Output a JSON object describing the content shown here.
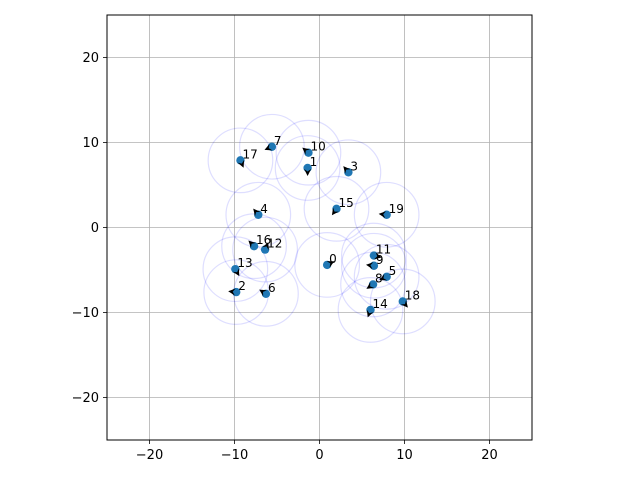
{
  "chart_data": {
    "type": "scatter",
    "title": "",
    "xlabel": "",
    "ylabel": "",
    "xlim": [
      -25,
      25
    ],
    "ylim": [
      -25,
      25
    ],
    "grid": true,
    "legend": "none",
    "xticks": [
      -20,
      -10,
      0,
      10,
      20
    ],
    "yticks": [
      -20,
      -10,
      0,
      10,
      20
    ],
    "xtick_labels": [
      "−20",
      "−10",
      "0",
      "10",
      "20"
    ],
    "ytick_labels": [
      "−20",
      "−10",
      "0",
      "10",
      "20"
    ],
    "circle_radius": 3.8,
    "colors": {
      "point": "#1f77b4",
      "circle": "#0000ff",
      "grid": "#b0b0b0",
      "arrow": "#000000"
    },
    "points": [
      {
        "label": "0",
        "x": 0.9,
        "y": -4.4,
        "dx": 0.6,
        "dy": 0.3
      },
      {
        "label": "1",
        "x": -1.4,
        "y": 7.0,
        "dx": 0.0,
        "dy": -0.9
      },
      {
        "label": "2",
        "x": -9.8,
        "y": -7.6,
        "dx": -0.9,
        "dy": 0.1
      },
      {
        "label": "3",
        "x": 3.4,
        "y": 6.5,
        "dx": -0.5,
        "dy": 0.6
      },
      {
        "label": "4",
        "x": -7.2,
        "y": 1.5,
        "dx": -0.5,
        "dy": 0.6
      },
      {
        "label": "5",
        "x": 7.9,
        "y": -5.8,
        "dx": -0.7,
        "dy": -0.3
      },
      {
        "label": "6",
        "x": -6.3,
        "y": -7.8,
        "dx": -0.8,
        "dy": 0.5
      },
      {
        "label": "7",
        "x": -5.6,
        "y": 9.5,
        "dx": -0.7,
        "dy": -0.3
      },
      {
        "label": "8",
        "x": 6.3,
        "y": -6.7,
        "dx": -0.6,
        "dy": -0.4
      },
      {
        "label": "9",
        "x": 6.4,
        "y": -4.5,
        "dx": -0.8,
        "dy": 0.1
      },
      {
        "label": "10",
        "x": -1.3,
        "y": 8.8,
        "dx": -0.6,
        "dy": 0.5
      },
      {
        "label": "11",
        "x": 6.4,
        "y": -3.3,
        "dx": 0.8,
        "dy": -0.2
      },
      {
        "label": "12",
        "x": -6.4,
        "y": -2.6,
        "dx": 0.3,
        "dy": 0.7
      },
      {
        "label": "13",
        "x": -9.9,
        "y": -4.9,
        "dx": 0.4,
        "dy": -0.7
      },
      {
        "label": "14",
        "x": 6.0,
        "y": -9.7,
        "dx": -0.3,
        "dy": -0.8
      },
      {
        "label": "15",
        "x": 2.0,
        "y": 2.2,
        "dx": -0.5,
        "dy": -0.7
      },
      {
        "label": "16",
        "x": -7.7,
        "y": -2.2,
        "dx": -0.6,
        "dy": 0.6
      },
      {
        "label": "17",
        "x": -9.3,
        "y": 7.9,
        "dx": 0.3,
        "dy": -0.7
      },
      {
        "label": "18",
        "x": 9.8,
        "y": -8.7,
        "dx": 0.5,
        "dy": -0.6
      },
      {
        "label": "19",
        "x": 7.9,
        "y": 1.5,
        "dx": -0.9,
        "dy": 0.1
      }
    ]
  }
}
